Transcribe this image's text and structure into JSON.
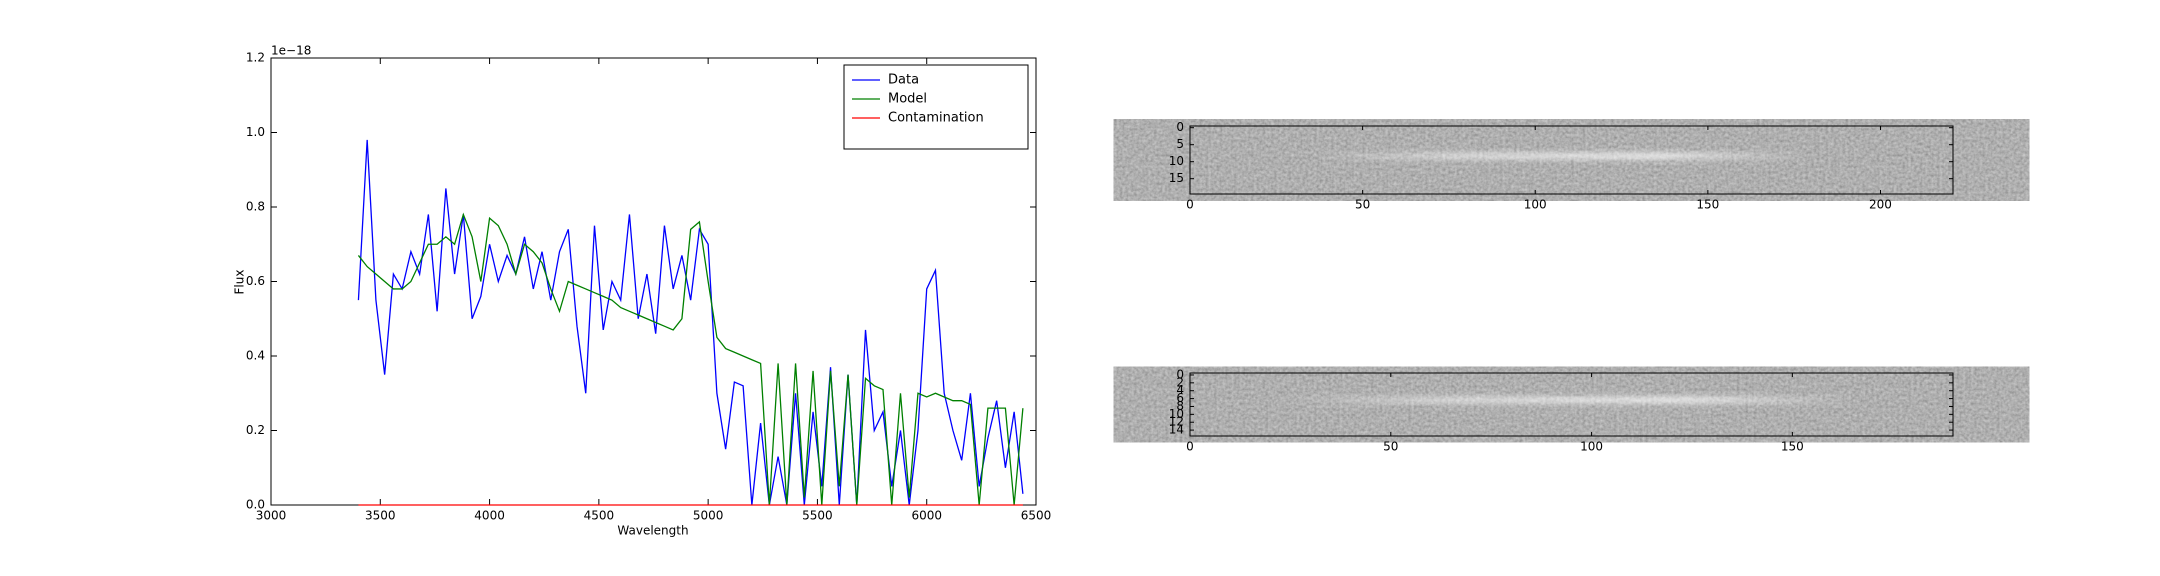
{
  "chart_data": [
    {
      "type": "line",
      "offset_text": "1e−18",
      "x_label": "Wavelength",
      "y_label": "Flux",
      "xlim": [
        3000,
        6500
      ],
      "xticks": [
        3000,
        3500,
        4000,
        4500,
        5000,
        5500,
        6000,
        6500
      ],
      "ylim": [
        0,
        1.2
      ],
      "yticks": [
        {
          "value": 0,
          "label": "0.0"
        },
        0.2,
        0.4,
        0.6,
        0.8,
        {
          "value": 1,
          "label": "1.0"
        },
        1.2
      ],
      "legend": "upper right",
      "x": [
        3400,
        3440,
        3480,
        3520,
        3560,
        3600,
        3640,
        3680,
        3720,
        3760,
        3800,
        3840,
        3880,
        3920,
        3960,
        4000,
        4040,
        4080,
        4120,
        4160,
        4200,
        4240,
        4280,
        4320,
        4360,
        4400,
        4440,
        4480,
        4520,
        4560,
        4600,
        4640,
        4680,
        4720,
        4760,
        4800,
        4840,
        4880,
        4920,
        4960,
        5000,
        5040,
        5080,
        5120,
        5160,
        5200,
        5240,
        5280,
        5320,
        5360,
        5400,
        5440,
        5480,
        5520,
        5560,
        5600,
        5640,
        5680,
        5720,
        5760,
        5800,
        5840,
        5880,
        5920,
        5960,
        6000,
        6040,
        6080,
        6120,
        6160,
        6200,
        6240,
        6280,
        6320,
        6360,
        6400,
        6440
      ],
      "series": [
        {
          "name": "Data",
          "color": "#0000ff",
          "values": [
            0.55,
            0.98,
            0.55,
            0.35,
            0.62,
            0.58,
            0.68,
            0.62,
            0.78,
            0.52,
            0.85,
            0.62,
            0.78,
            0.5,
            0.56,
            0.7,
            0.6,
            0.67,
            0.62,
            0.72,
            0.58,
            0.68,
            0.55,
            0.68,
            0.74,
            0.48,
            0.3,
            0.75,
            0.47,
            0.6,
            0.55,
            0.78,
            0.5,
            0.62,
            0.46,
            0.75,
            0.58,
            0.67,
            0.55,
            0.74,
            0.7,
            0.3,
            0.15,
            0.33,
            0.32,
            0,
            0.22,
            0,
            0.13,
            0,
            0.3,
            0,
            0.25,
            0.05,
            0.37,
            0,
            0.35,
            0,
            0.47,
            0.2,
            0.25,
            0.05,
            0.2,
            0,
            0.2,
            0.58,
            0.63,
            0.3,
            0.2,
            0.12,
            0.3,
            0.05,
            0.18,
            0.28,
            0.1,
            0.25,
            0.03
          ]
        },
        {
          "name": "Model",
          "color": "#008000",
          "values": [
            0.67,
            0.64,
            0.62,
            0.6,
            0.58,
            0.58,
            0.6,
            0.65,
            0.7,
            0.7,
            0.72,
            0.7,
            0.78,
            0.72,
            0.6,
            0.77,
            0.75,
            0.7,
            0.62,
            0.7,
            0.68,
            0.65,
            0.58,
            0.52,
            0.6,
            0.59,
            0.58,
            0.57,
            0.56,
            0.55,
            0.53,
            0.52,
            0.51,
            0.5,
            0.49,
            0.48,
            0.47,
            0.5,
            0.74,
            0.76,
            0.6,
            0.45,
            0.42,
            0.41,
            0.4,
            0.39,
            0.38,
            0,
            0.38,
            0,
            0.38,
            0.02,
            0.36,
            0,
            0.36,
            0.05,
            0.35,
            0,
            0.34,
            0.32,
            0.31,
            0,
            0.3,
            0.02,
            0.3,
            0.29,
            0.3,
            0.29,
            0.28,
            0.28,
            0.27,
            0,
            0.26,
            0.26,
            0.26,
            0,
            0.26
          ]
        },
        {
          "name": "Contamination",
          "color": "#ff0000",
          "values": [
            0,
            0,
            0,
            0,
            0,
            0,
            0,
            0,
            0,
            0,
            0,
            0,
            0,
            0,
            0,
            0,
            0,
            0,
            0,
            0,
            0,
            0,
            0,
            0,
            0,
            0,
            0,
            0,
            0,
            0,
            0,
            0,
            0,
            0,
            0,
            0,
            0,
            0,
            0,
            0,
            0,
            0,
            0,
            0,
            0,
            0,
            0,
            0,
            0,
            0,
            0,
            0,
            0,
            0,
            0,
            0,
            0,
            0,
            0,
            0,
            0,
            0,
            0,
            0,
            0,
            0,
            0,
            0,
            0,
            0,
            0,
            0,
            0,
            0,
            0,
            0,
            0
          ]
        }
      ]
    },
    {
      "type": "image",
      "xlim": [
        0,
        221
      ],
      "xticks": [
        0,
        50,
        100,
        150,
        200
      ],
      "ylim": [
        19.5,
        -0.5
      ],
      "yticks": [
        0,
        5,
        10,
        15
      ]
    },
    {
      "type": "image",
      "xlim": [
        0,
        190
      ],
      "xticks": [
        0,
        50,
        100,
        150
      ],
      "ylim": [
        15.5,
        -0.5
      ],
      "yticks": [
        0,
        2,
        4,
        6,
        8,
        10,
        12,
        14
      ]
    }
  ]
}
